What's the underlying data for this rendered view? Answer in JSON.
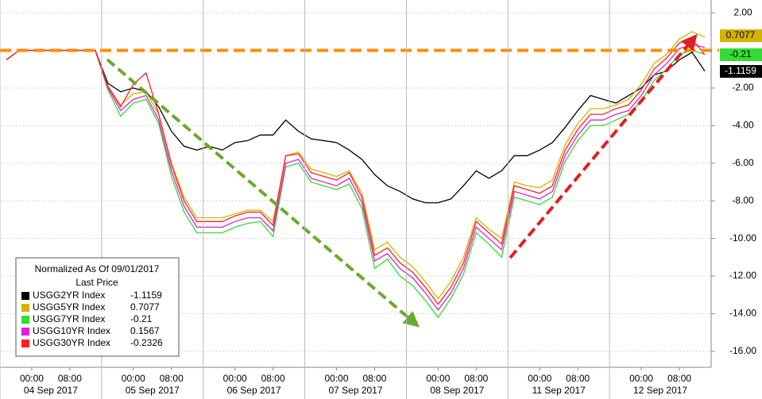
{
  "chart_data": {
    "type": "line",
    "categories": [
      null,
      null,
      "00:00",
      null,
      null,
      "08:00",
      null,
      null,
      null,
      null,
      "00:00",
      null,
      null,
      "08:00",
      null,
      null,
      null,
      null,
      "00:00",
      null,
      null,
      "08:00",
      null,
      null,
      null,
      null,
      "00:00",
      null,
      null,
      "08:00",
      null,
      null,
      null,
      null,
      "00:00",
      null,
      null,
      "08:00",
      null,
      null,
      null,
      null,
      "00:00",
      null,
      null,
      "08:00",
      null,
      null,
      null,
      null,
      "00:00",
      null,
      null,
      "08:00",
      null,
      null
    ],
    "day_labels": [
      null,
      null,
      null,
      "04 Sep 2017",
      null,
      null,
      null,
      null,
      null,
      null,
      null,
      "05 Sep 2017",
      null,
      null,
      null,
      null,
      null,
      null,
      null,
      "06 Sep 2017",
      null,
      null,
      null,
      null,
      null,
      null,
      null,
      "07 Sep 2017",
      null,
      null,
      null,
      null,
      null,
      null,
      null,
      "08 Sep 2017",
      null,
      null,
      null,
      null,
      null,
      null,
      null,
      "11 Sep 2017",
      null,
      null,
      null,
      null,
      null,
      null,
      null,
      "12 Sep 2017",
      null,
      null,
      null,
      null
    ],
    "ylim": [
      -16.85,
      2.68
    ],
    "yticks": [
      {
        "value": 2,
        "label": "2.00"
      },
      {
        "value": -2,
        "label": "-2.00"
      },
      {
        "value": -4,
        "label": "-4.00"
      },
      {
        "value": -6,
        "label": "-6.00"
      },
      {
        "value": -8,
        "label": "-8.00"
      },
      {
        "value": -10,
        "label": "-10.00"
      },
      {
        "value": -12,
        "label": "-12.00"
      },
      {
        "value": -14,
        "label": "-14.00"
      },
      {
        "value": -16,
        "label": "-16.00"
      }
    ],
    "grid": true,
    "reference_line": 0,
    "reference_color": "#ff8c00",
    "legend_title": "Normalized As Of 09/01/2017",
    "legend_subtitle": "Last Price",
    "series": [
      {
        "name": "USGG2YR Index",
        "color": "#000000",
        "last_price": -1.1159,
        "values": [
          -0.5,
          0,
          0,
          0,
          0,
          0,
          0,
          0,
          -1.75,
          -2.2,
          -2.0,
          -2.2,
          -3.0,
          -4.3,
          -5.1,
          -5.3,
          -5.1,
          -5.3,
          -4.9,
          -4.8,
          -4.5,
          -4.5,
          -3.7,
          -4.3,
          -4.7,
          -4.8,
          -4.9,
          -5.3,
          -5.8,
          -6.6,
          -7.2,
          -7.5,
          -7.9,
          -8.1,
          -8.1,
          -7.9,
          -7.2,
          -6.4,
          -6.8,
          -6.4,
          -5.6,
          -5.6,
          -5.3,
          -4.9,
          -4.1,
          -3.2,
          -2.4,
          -2.6,
          -2.8,
          -2.4,
          -2.0,
          -1.3,
          -1.1,
          -0.5,
          -0.1,
          -1.1
        ]
      },
      {
        "name": "USGG5YR Index",
        "color": "#d4b300",
        "last_price": 0.7077,
        "values": [
          -0.5,
          0,
          0,
          0,
          0,
          0,
          0,
          0,
          -1.9,
          -2.9,
          -2.3,
          -2.2,
          -3.4,
          -6.0,
          -7.8,
          -8.9,
          -8.9,
          -8.9,
          -8.7,
          -8.5,
          -8.5,
          -9.1,
          -5.6,
          -5.4,
          -6.3,
          -6.5,
          -6.7,
          -6.4,
          -7.6,
          -10.6,
          -10.2,
          -11.0,
          -11.5,
          -12.3,
          -13.2,
          -12.3,
          -11.0,
          -8.9,
          -9.5,
          -10.0,
          -7.0,
          -7.2,
          -7.3,
          -6.9,
          -5.0,
          -3.9,
          -3.1,
          -3.1,
          -2.9,
          -2.6,
          -1.8,
          -0.7,
          -0.2,
          0.6,
          1.0,
          0.7077
        ]
      },
      {
        "name": "USGG7YR Index",
        "color": "#33dd33",
        "last_price": -0.21,
        "values": [
          -0.5,
          0,
          0,
          0,
          0,
          0,
          0,
          0,
          -2.1,
          -3.5,
          -2.8,
          -2.6,
          -3.9,
          -6.7,
          -8.6,
          -9.7,
          -9.7,
          -9.7,
          -9.4,
          -9.2,
          -9.1,
          -9.9,
          -6.2,
          -6.0,
          -7.0,
          -7.2,
          -7.4,
          -7.1,
          -8.4,
          -11.6,
          -11.1,
          -12.0,
          -12.5,
          -13.3,
          -14.2,
          -13.2,
          -11.9,
          -9.7,
          -10.3,
          -11.0,
          -7.8,
          -8.0,
          -8.2,
          -7.8,
          -5.9,
          -4.8,
          -4.0,
          -4.0,
          -3.7,
          -3.4,
          -2.7,
          -1.6,
          -1.0,
          -0.2,
          0.0,
          -0.21
        ]
      },
      {
        "name": "USGG10YR Index",
        "color": "#e020e0",
        "last_price": 0.1567,
        "values": [
          -0.5,
          0,
          0,
          0,
          0,
          0,
          0,
          0,
          -2.0,
          -3.2,
          -2.6,
          -2.4,
          -3.7,
          -6.4,
          -8.3,
          -9.4,
          -9.4,
          -9.4,
          -9.1,
          -8.9,
          -8.9,
          -9.6,
          -6.0,
          -5.8,
          -6.8,
          -7.0,
          -7.2,
          -6.8,
          -8.1,
          -11.2,
          -10.8,
          -11.6,
          -12.1,
          -12.9,
          -13.8,
          -12.9,
          -11.6,
          -9.4,
          -10.0,
          -10.6,
          -7.5,
          -7.7,
          -7.9,
          -7.5,
          -5.6,
          -4.5,
          -3.7,
          -3.7,
          -3.4,
          -3.2,
          -2.4,
          -1.3,
          -0.7,
          0.1,
          0.3,
          0.16
        ]
      },
      {
        "name": "USGG30YR Index",
        "color": "#ff2020",
        "last_price": -0.2326,
        "values": [
          -0.5,
          0,
          0,
          0,
          0,
          0,
          0,
          0,
          -1.9,
          -3.0,
          -1.8,
          -1.2,
          -3.4,
          -6.1,
          -8.0,
          -9.1,
          -9.1,
          -9.1,
          -8.8,
          -8.6,
          -8.6,
          -9.3,
          -5.6,
          -5.5,
          -6.5,
          -6.7,
          -6.9,
          -6.5,
          -7.8,
          -10.9,
          -10.5,
          -11.3,
          -11.8,
          -12.6,
          -13.5,
          -12.6,
          -11.3,
          -9.1,
          -9.7,
          -10.3,
          -7.2,
          -7.4,
          -7.6,
          -7.2,
          -5.3,
          -4.2,
          -3.4,
          -3.4,
          -3.1,
          -2.9,
          -2.1,
          -1.0,
          -0.4,
          0.4,
          0.6,
          -0.2326
        ]
      }
    ]
  }
}
